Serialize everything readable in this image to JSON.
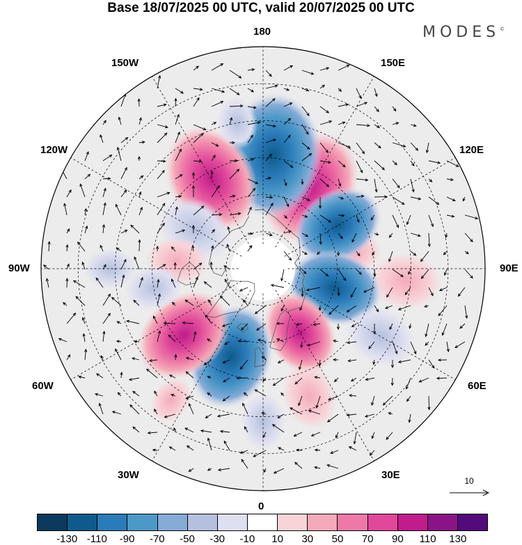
{
  "title": "Base 18/07/2025 00 UTC, valid 20/07/2025 00 UTC",
  "logo": "MODES",
  "logo_mark": "©",
  "longitude_labels": {
    "top": "180",
    "bottom": "0",
    "left": "90W",
    "right": "90E",
    "upper_left_1": "150W",
    "upper_left_2": "120W",
    "upper_right_1": "150E",
    "upper_right_2": "120E",
    "lower_left_1": "60W",
    "lower_left_2": "30W",
    "lower_right_1": "60E",
    "lower_right_2": "30E"
  },
  "wind_reference": "10",
  "colorbar": {
    "colors": [
      "#0b3a5e",
      "#0f5a8c",
      "#2b7bb9",
      "#4e98c8",
      "#85abd6",
      "#b4c0de",
      "#dedff0",
      "#ffffff",
      "#f8d4d8",
      "#f5aab9",
      "#ee79a8",
      "#e0489a",
      "#c01c8c",
      "#8a1487",
      "#530a7a"
    ],
    "tick_labels": [
      "-130",
      "-110",
      "-90",
      "-70",
      "-50",
      "-30",
      "-10",
      "10",
      "30",
      "50",
      "70",
      "90",
      "110",
      "130"
    ]
  },
  "anomalies": [
    {
      "lon": 150,
      "lat": 52,
      "value": 85
    },
    {
      "lon": 175,
      "lat": 44,
      "value": -95
    },
    {
      "lon": -150,
      "lat": 48,
      "value": 80
    },
    {
      "lon": -120,
      "lat": 58,
      "value": -45
    },
    {
      "lon": -95,
      "lat": 55,
      "value": 30
    },
    {
      "lon": 100,
      "lat": 52,
      "value": 20
    },
    {
      "lon": 85,
      "lat": 32,
      "value": 40
    },
    {
      "lon": 120,
      "lat": 55,
      "value": -60
    },
    {
      "lon": 75,
      "lat": 60,
      "value": -65
    },
    {
      "lon": 30,
      "lat": 60,
      "value": 55
    },
    {
      "lon": 60,
      "lat": 35,
      "value": -40
    },
    {
      "lon": 20,
      "lat": 35,
      "value": 35
    },
    {
      "lon": -20,
      "lat": 52,
      "value": -75
    },
    {
      "lon": -50,
      "lat": 48,
      "value": 70
    },
    {
      "lon": -80,
      "lat": 45,
      "value": -25
    },
    {
      "lon": -90,
      "lat": 28,
      "value": -20
    },
    {
      "lon": 0,
      "lat": 28,
      "value": -25
    },
    {
      "lon": -35,
      "lat": 25,
      "value": 15
    },
    {
      "lon": -170,
      "lat": 30,
      "value": -20
    }
  ],
  "wind_arrows": "light-vector-field",
  "coastline_style": "thin-dark-gray"
}
